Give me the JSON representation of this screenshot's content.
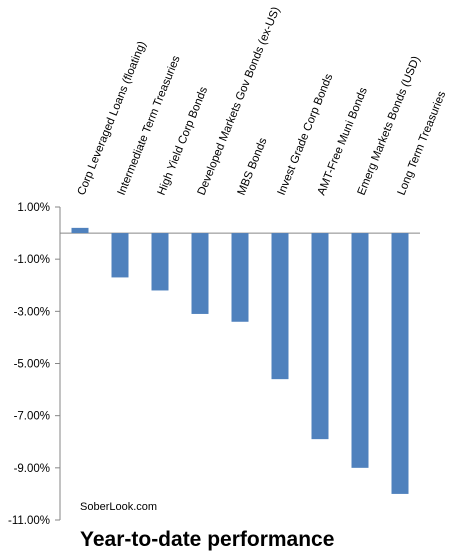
{
  "chart_data": {
    "type": "bar",
    "title": "Year-to-date performance",
    "xlabel": "",
    "ylabel": "",
    "categories": [
      "Corp Leveraged Loans (floating)",
      "Intermediate Term Treasuries",
      "High Yield Corp Bonds",
      "Developed Markets Gov Bonds (ex-US)",
      "MBS Bonds",
      "Invest Grade Corp Bonds",
      "AMT-Free Muni Bonds",
      "Emerg Markets Bonds (USD)",
      "Long Term Treasuries"
    ],
    "values": [
      0.2,
      -1.7,
      -2.2,
      -3.1,
      -3.4,
      -5.6,
      -7.9,
      -9.0,
      -10.0
    ],
    "ylim": [
      -11,
      1
    ],
    "yticks": [
      "1.00%",
      "-1.00%",
      "-3.00%",
      "-5.00%",
      "-7.00%",
      "-9.00%",
      "-11.00%"
    ],
    "ytick_values": [
      1,
      -1,
      -3,
      -5,
      -7,
      -9,
      -11
    ],
    "bar_color": "#4f81bd",
    "grid": false,
    "legend": "none",
    "watermark": "SoberLook.com"
  }
}
